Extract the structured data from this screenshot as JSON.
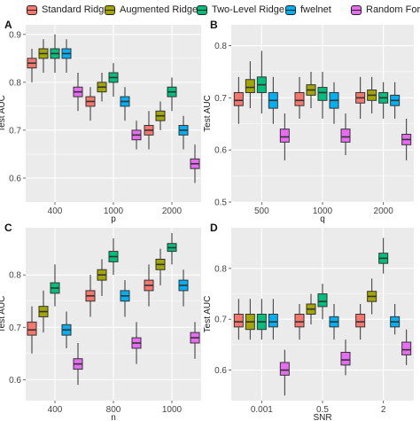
{
  "legend": {
    "entries": [
      {
        "name": "Standard Ridge",
        "color": "#F8766D"
      },
      {
        "name": "Augmented Ridge",
        "color": "#A3A500"
      },
      {
        "name": "Two-Level Ridge",
        "color": "#00BF7D"
      },
      {
        "name": "fwelnet",
        "color": "#00B0F6"
      },
      {
        "name": "Random Forest",
        "color": "#E76BF3"
      }
    ]
  },
  "chart_data": [
    {
      "panel": "A",
      "type": "boxplot",
      "xlabel": "p",
      "ylabel": "Test AUC",
      "categories": [
        "400",
        "1000",
        "2000"
      ],
      "ylim": [
        0.55,
        0.92
      ],
      "yticks": [
        0.6,
        0.7,
        0.8,
        0.9
      ],
      "series": [
        {
          "name": "Standard Ridge",
          "stats": [
            [
              0.8,
              0.83,
              0.84,
              0.85,
              0.87
            ],
            [
              0.72,
              0.75,
              0.76,
              0.77,
              0.79
            ],
            [
              0.66,
              0.69,
              0.7,
              0.71,
              0.74
            ]
          ]
        },
        {
          "name": "Augmented Ridge",
          "stats": [
            [
              0.82,
              0.85,
              0.86,
              0.87,
              0.89
            ],
            [
              0.76,
              0.78,
              0.79,
              0.8,
              0.82
            ],
            [
              0.7,
              0.72,
              0.73,
              0.74,
              0.76
            ]
          ]
        },
        {
          "name": "Two-Level Ridge",
          "stats": [
            [
              0.82,
              0.85,
              0.86,
              0.87,
              0.9
            ],
            [
              0.77,
              0.8,
              0.81,
              0.82,
              0.84
            ],
            [
              0.74,
              0.77,
              0.78,
              0.79,
              0.81
            ]
          ]
        },
        {
          "name": "fwelnet",
          "stats": [
            [
              0.82,
              0.85,
              0.86,
              0.87,
              0.89
            ],
            [
              0.72,
              0.75,
              0.76,
              0.77,
              0.79
            ],
            [
              0.66,
              0.69,
              0.7,
              0.71,
              0.73
            ]
          ]
        },
        {
          "name": "Random Forest",
          "stats": [
            [
              0.74,
              0.77,
              0.78,
              0.79,
              0.82
            ],
            [
              0.66,
              0.68,
              0.69,
              0.7,
              0.72
            ],
            [
              0.59,
              0.62,
              0.63,
              0.64,
              0.67
            ]
          ]
        }
      ]
    },
    {
      "panel": "B",
      "type": "boxplot",
      "xlabel": "q",
      "ylabel": "Test AUC",
      "categories": [
        "500",
        "1000",
        "2000"
      ],
      "ylim": [
        0.5,
        0.84
      ],
      "yticks": [
        0.5,
        0.6,
        0.7,
        0.8
      ],
      "series": [
        {
          "name": "Standard Ridge",
          "stats": [
            [
              0.65,
              0.685,
              0.695,
              0.71,
              0.74
            ],
            [
              0.66,
              0.685,
              0.695,
              0.71,
              0.74
            ],
            [
              0.66,
              0.69,
              0.7,
              0.71,
              0.74
            ]
          ]
        },
        {
          "name": "Augmented Ridge",
          "stats": [
            [
              0.68,
              0.71,
              0.72,
              0.735,
              0.77
            ],
            [
              0.68,
              0.705,
              0.715,
              0.725,
              0.75
            ],
            [
              0.67,
              0.695,
              0.705,
              0.715,
              0.74
            ]
          ]
        },
        {
          "name": "Two-Level Ridge",
          "stats": [
            [
              0.67,
              0.71,
              0.725,
              0.74,
              0.79
            ],
            [
              0.66,
              0.695,
              0.71,
              0.72,
              0.75
            ],
            [
              0.66,
              0.69,
              0.7,
              0.71,
              0.73
            ]
          ]
        },
        {
          "name": "fwelnet",
          "stats": [
            [
              0.65,
              0.68,
              0.695,
              0.71,
              0.74
            ],
            [
              0.65,
              0.68,
              0.695,
              0.71,
              0.73
            ],
            [
              0.66,
              0.685,
              0.695,
              0.705,
              0.73
            ]
          ]
        },
        {
          "name": "Random Forest",
          "stats": [
            [
              0.58,
              0.615,
              0.625,
              0.64,
              0.67
            ],
            [
              0.59,
              0.615,
              0.625,
              0.64,
              0.67
            ],
            [
              0.58,
              0.61,
              0.62,
              0.63,
              0.66
            ]
          ]
        }
      ]
    },
    {
      "panel": "C",
      "type": "boxplot",
      "xlabel": "n",
      "ylabel": "Test AUC",
      "categories": [
        "400",
        "800",
        "1000"
      ],
      "ylim": [
        0.56,
        0.89
      ],
      "yticks": [
        0.6,
        0.7,
        0.8
      ],
      "series": [
        {
          "name": "Standard Ridge",
          "stats": [
            [
              0.65,
              0.685,
              0.695,
              0.71,
              0.74
            ],
            [
              0.72,
              0.75,
              0.76,
              0.77,
              0.8
            ],
            [
              0.74,
              0.77,
              0.78,
              0.79,
              0.82
            ]
          ]
        },
        {
          "name": "Augmented Ridge",
          "stats": [
            [
              0.69,
              0.72,
              0.73,
              0.74,
              0.77
            ],
            [
              0.76,
              0.79,
              0.8,
              0.81,
              0.83
            ],
            [
              0.78,
              0.81,
              0.82,
              0.83,
              0.85
            ]
          ]
        },
        {
          "name": "Two-Level Ridge",
          "stats": [
            [
              0.74,
              0.765,
              0.775,
              0.785,
              0.82
            ],
            [
              0.8,
              0.825,
              0.835,
              0.845,
              0.87
            ],
            [
              0.82,
              0.845,
              0.852,
              0.86,
              0.88
            ]
          ]
        },
        {
          "name": "fwelnet",
          "stats": [
            [
              0.66,
              0.685,
              0.695,
              0.705,
              0.73
            ],
            [
              0.72,
              0.75,
              0.76,
              0.77,
              0.79
            ],
            [
              0.74,
              0.77,
              0.78,
              0.79,
              0.81
            ]
          ]
        },
        {
          "name": "Random Forest",
          "stats": [
            [
              0.59,
              0.62,
              0.63,
              0.64,
              0.67
            ],
            [
              0.63,
              0.66,
              0.67,
              0.68,
              0.71
            ],
            [
              0.64,
              0.67,
              0.68,
              0.69,
              0.71
            ]
          ]
        }
      ]
    },
    {
      "panel": "D",
      "type": "boxplot",
      "xlabel": "SNR",
      "ylabel": "Test AUC",
      "categories": [
        "0.001",
        "0.5",
        "2"
      ],
      "ylim": [
        0.54,
        0.88
      ],
      "yticks": [
        0.6,
        0.7,
        0.8
      ],
      "series": [
        {
          "name": "Standard Ridge",
          "stats": [
            [
              0.66,
              0.685,
              0.695,
              0.71,
              0.74
            ],
            [
              0.66,
              0.685,
              0.695,
              0.71,
              0.73
            ],
            [
              0.66,
              0.685,
              0.695,
              0.71,
              0.73
            ]
          ]
        },
        {
          "name": "Augmented Ridge",
          "stats": [
            [
              0.66,
              0.68,
              0.695,
              0.71,
              0.74
            ],
            [
              0.69,
              0.71,
              0.72,
              0.73,
              0.75
            ],
            [
              0.71,
              0.735,
              0.745,
              0.755,
              0.78
            ]
          ]
        },
        {
          "name": "Two-Level Ridge",
          "stats": [
            [
              0.66,
              0.68,
              0.695,
              0.71,
              0.74
            ],
            [
              0.7,
              0.725,
              0.735,
              0.75,
              0.77
            ],
            [
              0.79,
              0.81,
              0.82,
              0.83,
              0.86
            ]
          ]
        },
        {
          "name": "fwelnet",
          "stats": [
            [
              0.66,
              0.685,
              0.695,
              0.71,
              0.74
            ],
            [
              0.66,
              0.685,
              0.695,
              0.705,
              0.73
            ],
            [
              0.67,
              0.685,
              0.695,
              0.705,
              0.73
            ]
          ]
        },
        {
          "name": "Random Forest",
          "stats": [
            [
              0.55,
              0.59,
              0.6,
              0.615,
              0.64
            ],
            [
              0.59,
              0.61,
              0.62,
              0.635,
              0.66
            ],
            [
              0.61,
              0.63,
              0.64,
              0.655,
              0.68
            ]
          ]
        }
      ]
    }
  ],
  "style": {
    "panel_bg": "#EBEBEB",
    "grid": "#FFFFFF",
    "stroke": "#333333",
    "text": "#444444"
  }
}
